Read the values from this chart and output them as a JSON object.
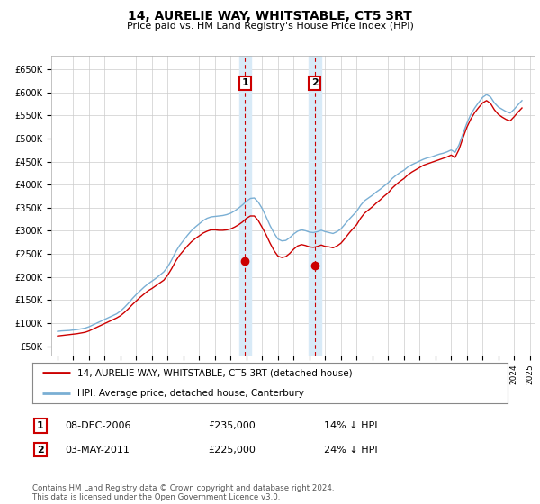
{
  "title": "14, AURELIE WAY, WHITSTABLE, CT5 3RT",
  "subtitle": "Price paid vs. HM Land Registry's House Price Index (HPI)",
  "ylabel_ticks": [
    "£50K",
    "£100K",
    "£150K",
    "£200K",
    "£250K",
    "£300K",
    "£350K",
    "£400K",
    "£450K",
    "£500K",
    "£550K",
    "£600K",
    "£650K"
  ],
  "ytick_values": [
    50000,
    100000,
    150000,
    200000,
    250000,
    300000,
    350000,
    400000,
    450000,
    500000,
    550000,
    600000,
    650000
  ],
  "ylim": [
    30000,
    680000
  ],
  "sale1": {
    "date_label": "08-DEC-2006",
    "price": 235000,
    "price_label": "£235,000",
    "pct_label": "14% ↓ HPI",
    "year": 2006.92,
    "marker_num": "1"
  },
  "sale2": {
    "date_label": "03-MAY-2011",
    "price": 225000,
    "price_label": "£225,000",
    "pct_label": "24% ↓ HPI",
    "year": 2011.33,
    "marker_num": "2"
  },
  "legend_line1": "14, AURELIE WAY, WHITSTABLE, CT5 3RT (detached house)",
  "legend_line2": "HPI: Average price, detached house, Canterbury",
  "footer": "Contains HM Land Registry data © Crown copyright and database right 2024.\nThis data is licensed under the Open Government Licence v3.0.",
  "line_color_red": "#cc0000",
  "line_color_blue": "#7aafd4",
  "shade_color": "#d8eaf7",
  "grid_color": "#cccccc",
  "bg_color": "#ffffff",
  "hpi_data": {
    "years": [
      1995.0,
      1995.25,
      1995.5,
      1995.75,
      1996.0,
      1996.25,
      1996.5,
      1996.75,
      1997.0,
      1997.25,
      1997.5,
      1997.75,
      1998.0,
      1998.25,
      1998.5,
      1998.75,
      1999.0,
      1999.25,
      1999.5,
      1999.75,
      2000.0,
      2000.25,
      2000.5,
      2000.75,
      2001.0,
      2001.25,
      2001.5,
      2001.75,
      2002.0,
      2002.25,
      2002.5,
      2002.75,
      2003.0,
      2003.25,
      2003.5,
      2003.75,
      2004.0,
      2004.25,
      2004.5,
      2004.75,
      2005.0,
      2005.25,
      2005.5,
      2005.75,
      2006.0,
      2006.25,
      2006.5,
      2006.75,
      2007.0,
      2007.25,
      2007.5,
      2007.75,
      2008.0,
      2008.25,
      2008.5,
      2008.75,
      2009.0,
      2009.25,
      2009.5,
      2009.75,
      2010.0,
      2010.25,
      2010.5,
      2010.75,
      2011.0,
      2011.25,
      2011.5,
      2011.75,
      2012.0,
      2012.25,
      2012.5,
      2012.75,
      2013.0,
      2013.25,
      2013.5,
      2013.75,
      2014.0,
      2014.25,
      2014.5,
      2014.75,
      2015.0,
      2015.25,
      2015.5,
      2015.75,
      2016.0,
      2016.25,
      2016.5,
      2016.75,
      2017.0,
      2017.25,
      2017.5,
      2017.75,
      2018.0,
      2018.25,
      2018.5,
      2018.75,
      2019.0,
      2019.25,
      2019.5,
      2019.75,
      2020.0,
      2020.25,
      2020.5,
      2020.75,
      2021.0,
      2021.25,
      2021.5,
      2021.75,
      2022.0,
      2022.25,
      2022.5,
      2022.75,
      2023.0,
      2023.25,
      2023.5,
      2023.75,
      2024.0,
      2024.25,
      2024.5
    ],
    "hpi_values": [
      82000,
      83000,
      83500,
      84000,
      85000,
      86000,
      87500,
      89000,
      92000,
      96000,
      100000,
      104000,
      108000,
      112000,
      116000,
      120000,
      126000,
      134000,
      143000,
      153000,
      162000,
      170000,
      178000,
      185000,
      191000,
      197000,
      204000,
      211000,
      222000,
      237000,
      254000,
      268000,
      279000,
      290000,
      300000,
      308000,
      315000,
      322000,
      327000,
      330000,
      331000,
      332000,
      333000,
      335000,
      338000,
      343000,
      349000,
      356000,
      364000,
      370000,
      371000,
      362000,
      348000,
      330000,
      311000,
      295000,
      282000,
      278000,
      279000,
      285000,
      293000,
      299000,
      302000,
      300000,
      297000,
      296000,
      298000,
      301000,
      298000,
      296000,
      294000,
      298000,
      304000,
      314000,
      324000,
      333000,
      342000,
      355000,
      365000,
      371000,
      377000,
      384000,
      390000,
      397000,
      404000,
      413000,
      420000,
      426000,
      431000,
      438000,
      443000,
      447000,
      451000,
      455000,
      458000,
      460000,
      463000,
      466000,
      468000,
      471000,
      475000,
      470000,
      486000,
      510000,
      533000,
      552000,
      566000,
      578000,
      589000,
      595000,
      590000,
      577000,
      568000,
      563000,
      558000,
      555000,
      563000,
      573000,
      582000
    ],
    "property_values": [
      72000,
      73000,
      74000,
      75000,
      76000,
      77000,
      78500,
      80000,
      83000,
      87000,
      91000,
      95000,
      99000,
      103000,
      107000,
      111000,
      116000,
      123000,
      131000,
      140000,
      148000,
      156000,
      163000,
      170000,
      175000,
      181000,
      187000,
      193000,
      204000,
      218000,
      234000,
      247000,
      257000,
      267000,
      276000,
      283000,
      289000,
      295000,
      299000,
      302000,
      302000,
      301000,
      301000,
      302000,
      304000,
      308000,
      313000,
      319000,
      327000,
      332000,
      332000,
      322000,
      307000,
      291000,
      273000,
      257000,
      245000,
      242000,
      244000,
      251000,
      260000,
      267000,
      270000,
      268000,
      265000,
      264000,
      266000,
      269000,
      266000,
      265000,
      263000,
      267000,
      273000,
      283000,
      294000,
      304000,
      313000,
      327000,
      338000,
      345000,
      352000,
      360000,
      367000,
      375000,
      382000,
      392000,
      400000,
      407000,
      413000,
      421000,
      427000,
      432000,
      437000,
      442000,
      445000,
      448000,
      451000,
      454000,
      457000,
      460000,
      464000,
      459000,
      476000,
      501000,
      524000,
      542000,
      556000,
      567000,
      577000,
      582000,
      576000,
      562000,
      552000,
      546000,
      541000,
      538000,
      547000,
      557000,
      566000
    ]
  }
}
